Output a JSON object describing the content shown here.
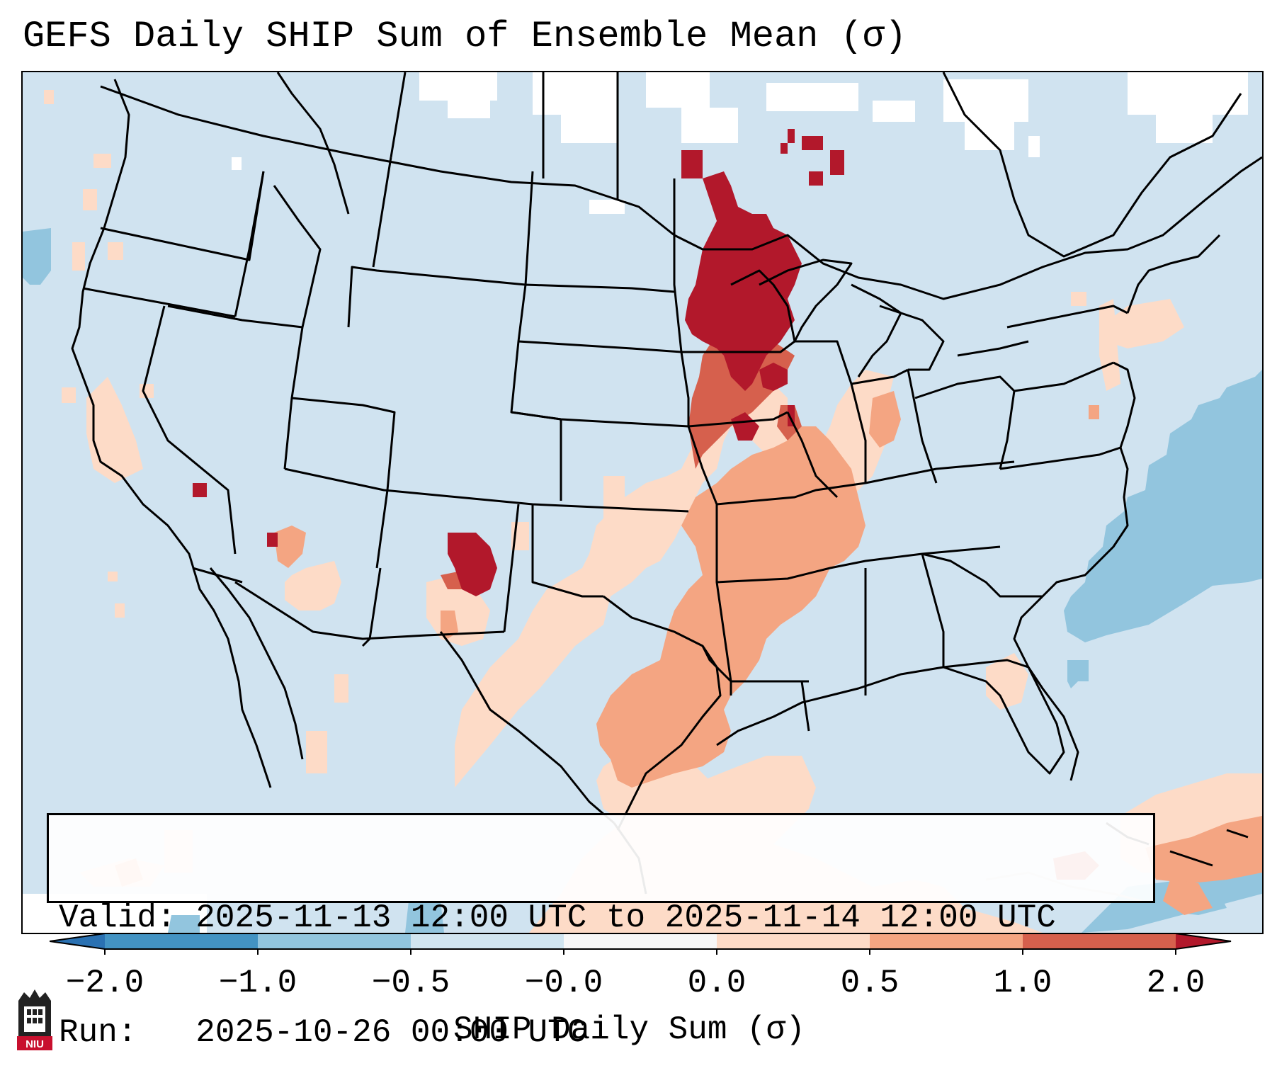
{
  "title": "GEFS Daily SHIP Sum of Ensemble Mean (σ)",
  "info": {
    "valid_label": "Valid:",
    "valid_value": "2025-11-13 12:00 UTC to 2025-11-14 12:00 UTC",
    "run_label": "Run:",
    "run_value": "2025-10-26 00:00 UTC"
  },
  "colorbar": {
    "label": "SHIP Daily Sum (σ)",
    "ticks": [
      "−2.0",
      "−1.0",
      "−0.5",
      "−0.0",
      "0.0",
      "0.5",
      "1.0",
      "2.0"
    ],
    "colors": [
      "#2a71b2",
      "#4393c3",
      "#92c5de",
      "#d1e5f0",
      "#f7f7f7",
      "#fddbc7",
      "#f4a582",
      "#d6604d",
      "#b2182b"
    ],
    "extend": "both"
  },
  "logo": {
    "text": "NIU",
    "icon": "university-tower-icon"
  },
  "map": {
    "region": "Contiguous United States",
    "background_color": "#d1e5f0",
    "anomaly_areas": [
      {
        "name": "upper-midwest-max",
        "category": "2.0+"
      },
      {
        "name": "iowa-missouri",
        "category": "1.0-2.0"
      },
      {
        "name": "central-plains",
        "category": "0.5-1.0"
      },
      {
        "name": "texas-gulf",
        "category": "0.0-0.5"
      },
      {
        "name": "new-mexico-max",
        "category": "2.0+"
      },
      {
        "name": "atlantic-negative",
        "category": "-1.0 to -0.5"
      }
    ]
  }
}
